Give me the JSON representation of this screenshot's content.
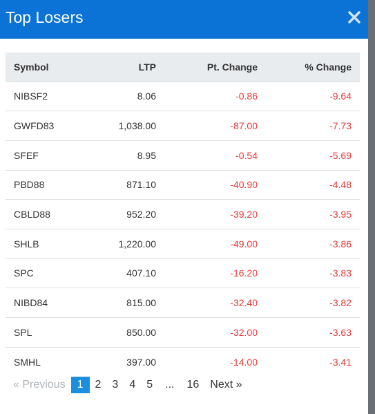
{
  "modal": {
    "title": "Top Losers"
  },
  "colors": {
    "header_bg": "#0b73d6",
    "negative": "#e63a3a",
    "active_page": "#1a8fe0"
  },
  "table": {
    "headers": [
      "Symbol",
      "LTP",
      "Pt. Change",
      "% Change"
    ],
    "rows": [
      [
        "NIBSF2",
        "8.06",
        "-0.86",
        "-9.64"
      ],
      [
        "GWFD83",
        "1,038.00",
        "-87.00",
        "-7.73"
      ],
      [
        "SFEF",
        "8.95",
        "-0.54",
        "-5.69"
      ],
      [
        "PBD88",
        "871.10",
        "-40.90",
        "-4.48"
      ],
      [
        "CBLD88",
        "952.20",
        "-39.20",
        "-3.95"
      ],
      [
        "SHLB",
        "1,220.00",
        "-49.00",
        "-3.86"
      ],
      [
        "SPC",
        "407.10",
        "-16.20",
        "-3.83"
      ],
      [
        "NIBD84",
        "815.00",
        "-32.40",
        "-3.82"
      ],
      [
        "SPL",
        "850.00",
        "-32.00",
        "-3.63"
      ],
      [
        "SMHL",
        "397.00",
        "-14.00",
        "-3.41"
      ]
    ]
  },
  "pagination": {
    "prev_label": "« Previous",
    "next_label": "Next »",
    "pages": [
      "1",
      "2",
      "3",
      "4",
      "5",
      "...",
      "16"
    ],
    "current": "1"
  }
}
